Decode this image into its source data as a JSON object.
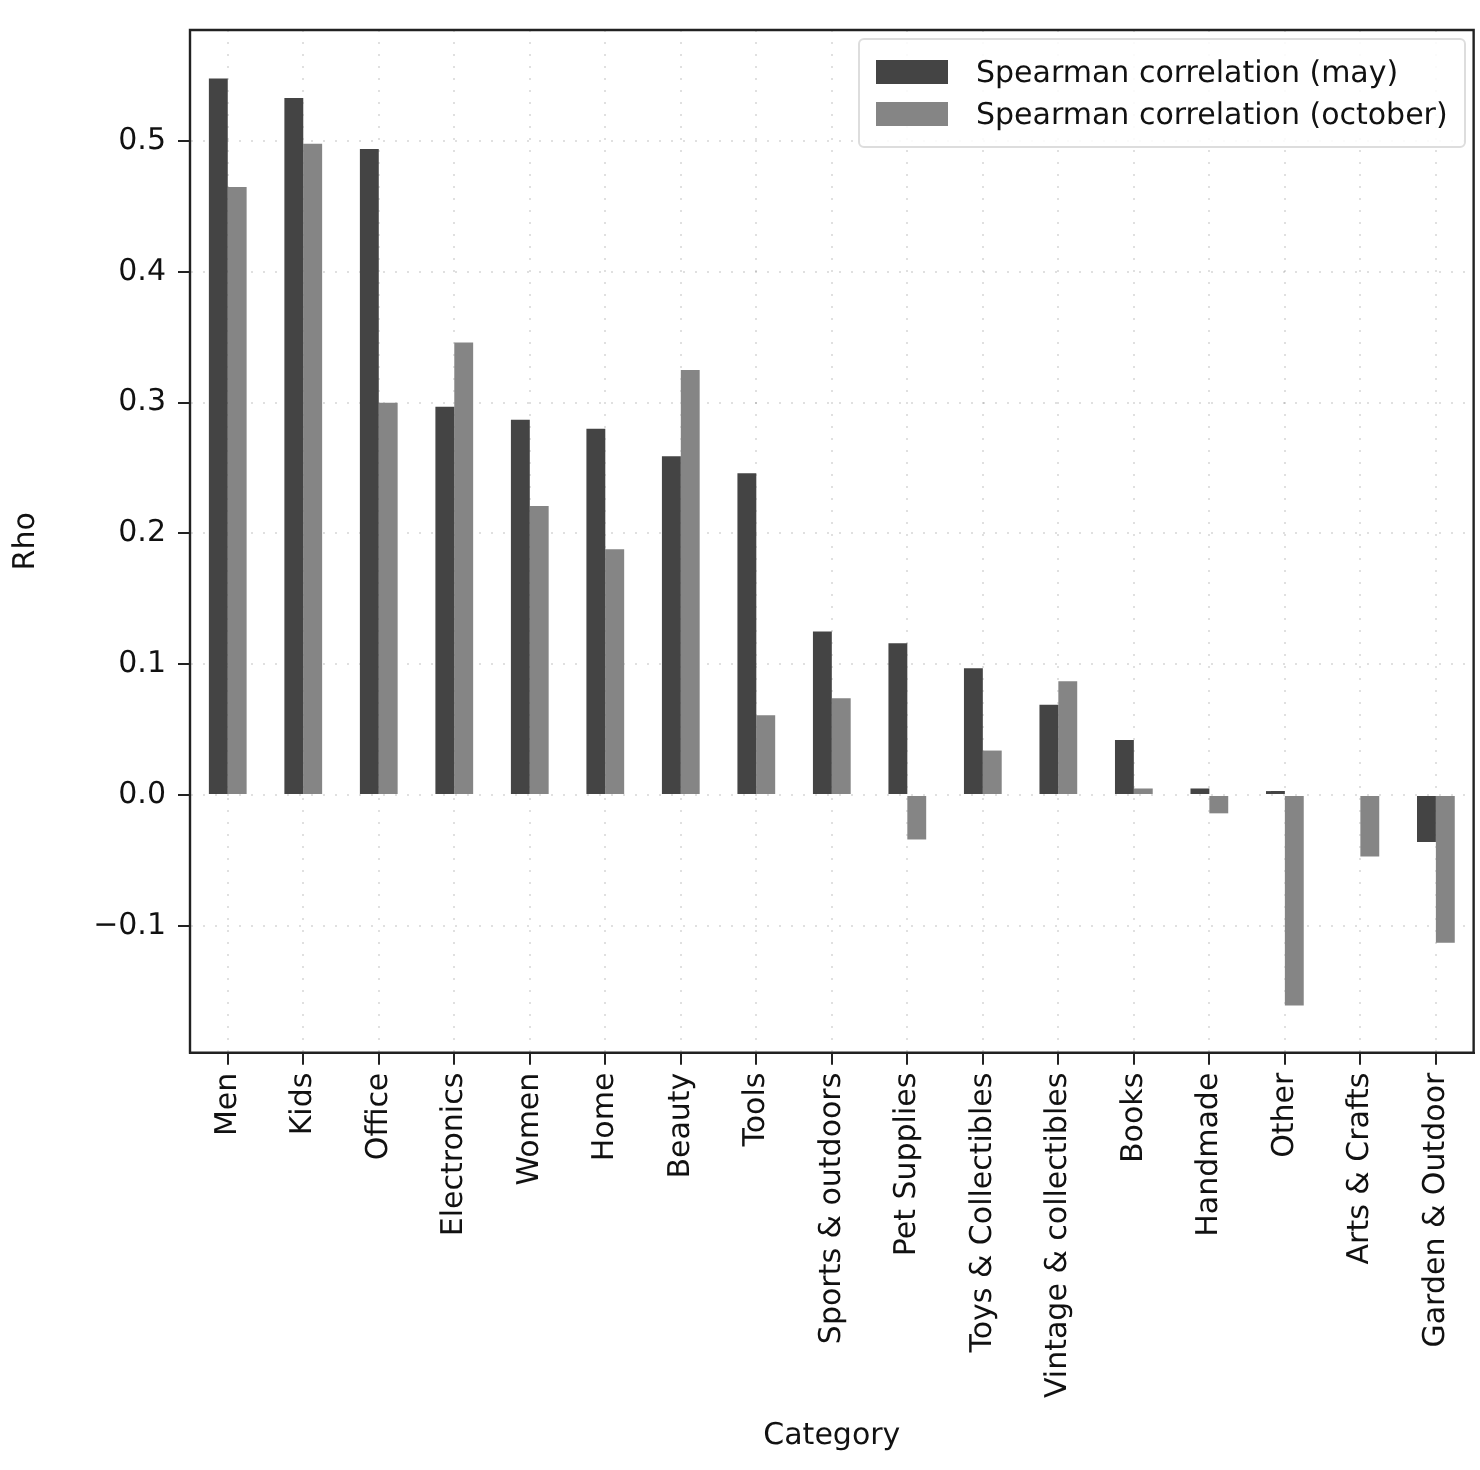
{
  "chart_data": {
    "type": "bar",
    "xlabel": "Category",
    "ylabel": "Rho",
    "categories": [
      "Men",
      "Kids",
      "Office",
      "Electronics",
      "Women",
      "Home",
      "Beauty",
      "Tools",
      "Sports & outdoors",
      "Pet Supplies",
      "Toys & Collectibles",
      "Vintage & collectibles",
      "Books",
      "Handmade",
      "Other",
      "Arts & Crafts",
      "Garden & Outdoor"
    ],
    "series": [
      {
        "name": "Spearman correlation (may)",
        "color": "#444444",
        "values": [
          0.548,
          0.533,
          0.494,
          0.297,
          0.287,
          0.28,
          0.259,
          0.246,
          0.125,
          0.116,
          0.097,
          0.069,
          0.042,
          0.005,
          0.003,
          0,
          -0.036
        ]
      },
      {
        "name": "Spearman correlation (october)",
        "color": "#858585",
        "values": [
          0.465,
          0.498,
          0.3,
          0.346,
          0.221,
          0.188,
          0.325,
          0.061,
          0.074,
          -0.034,
          0.034,
          0.087,
          0.005,
          -0.014,
          -0.161,
          -0.047,
          -0.113
        ]
      }
    ],
    "ylim": [
      -0.197,
      0.585
    ],
    "yticks": [
      {
        "value": -0.1,
        "label": "−0.1"
      },
      {
        "value": 0,
        "label": "0.0"
      },
      {
        "value": 0.1,
        "label": "0.1"
      },
      {
        "value": 0.2,
        "label": "0.2"
      },
      {
        "value": 0.3,
        "label": "0.3"
      },
      {
        "value": 0.4,
        "label": "0.4"
      },
      {
        "value": 0.5,
        "label": "0.5"
      }
    ],
    "grid": true,
    "legend": "top right"
  }
}
